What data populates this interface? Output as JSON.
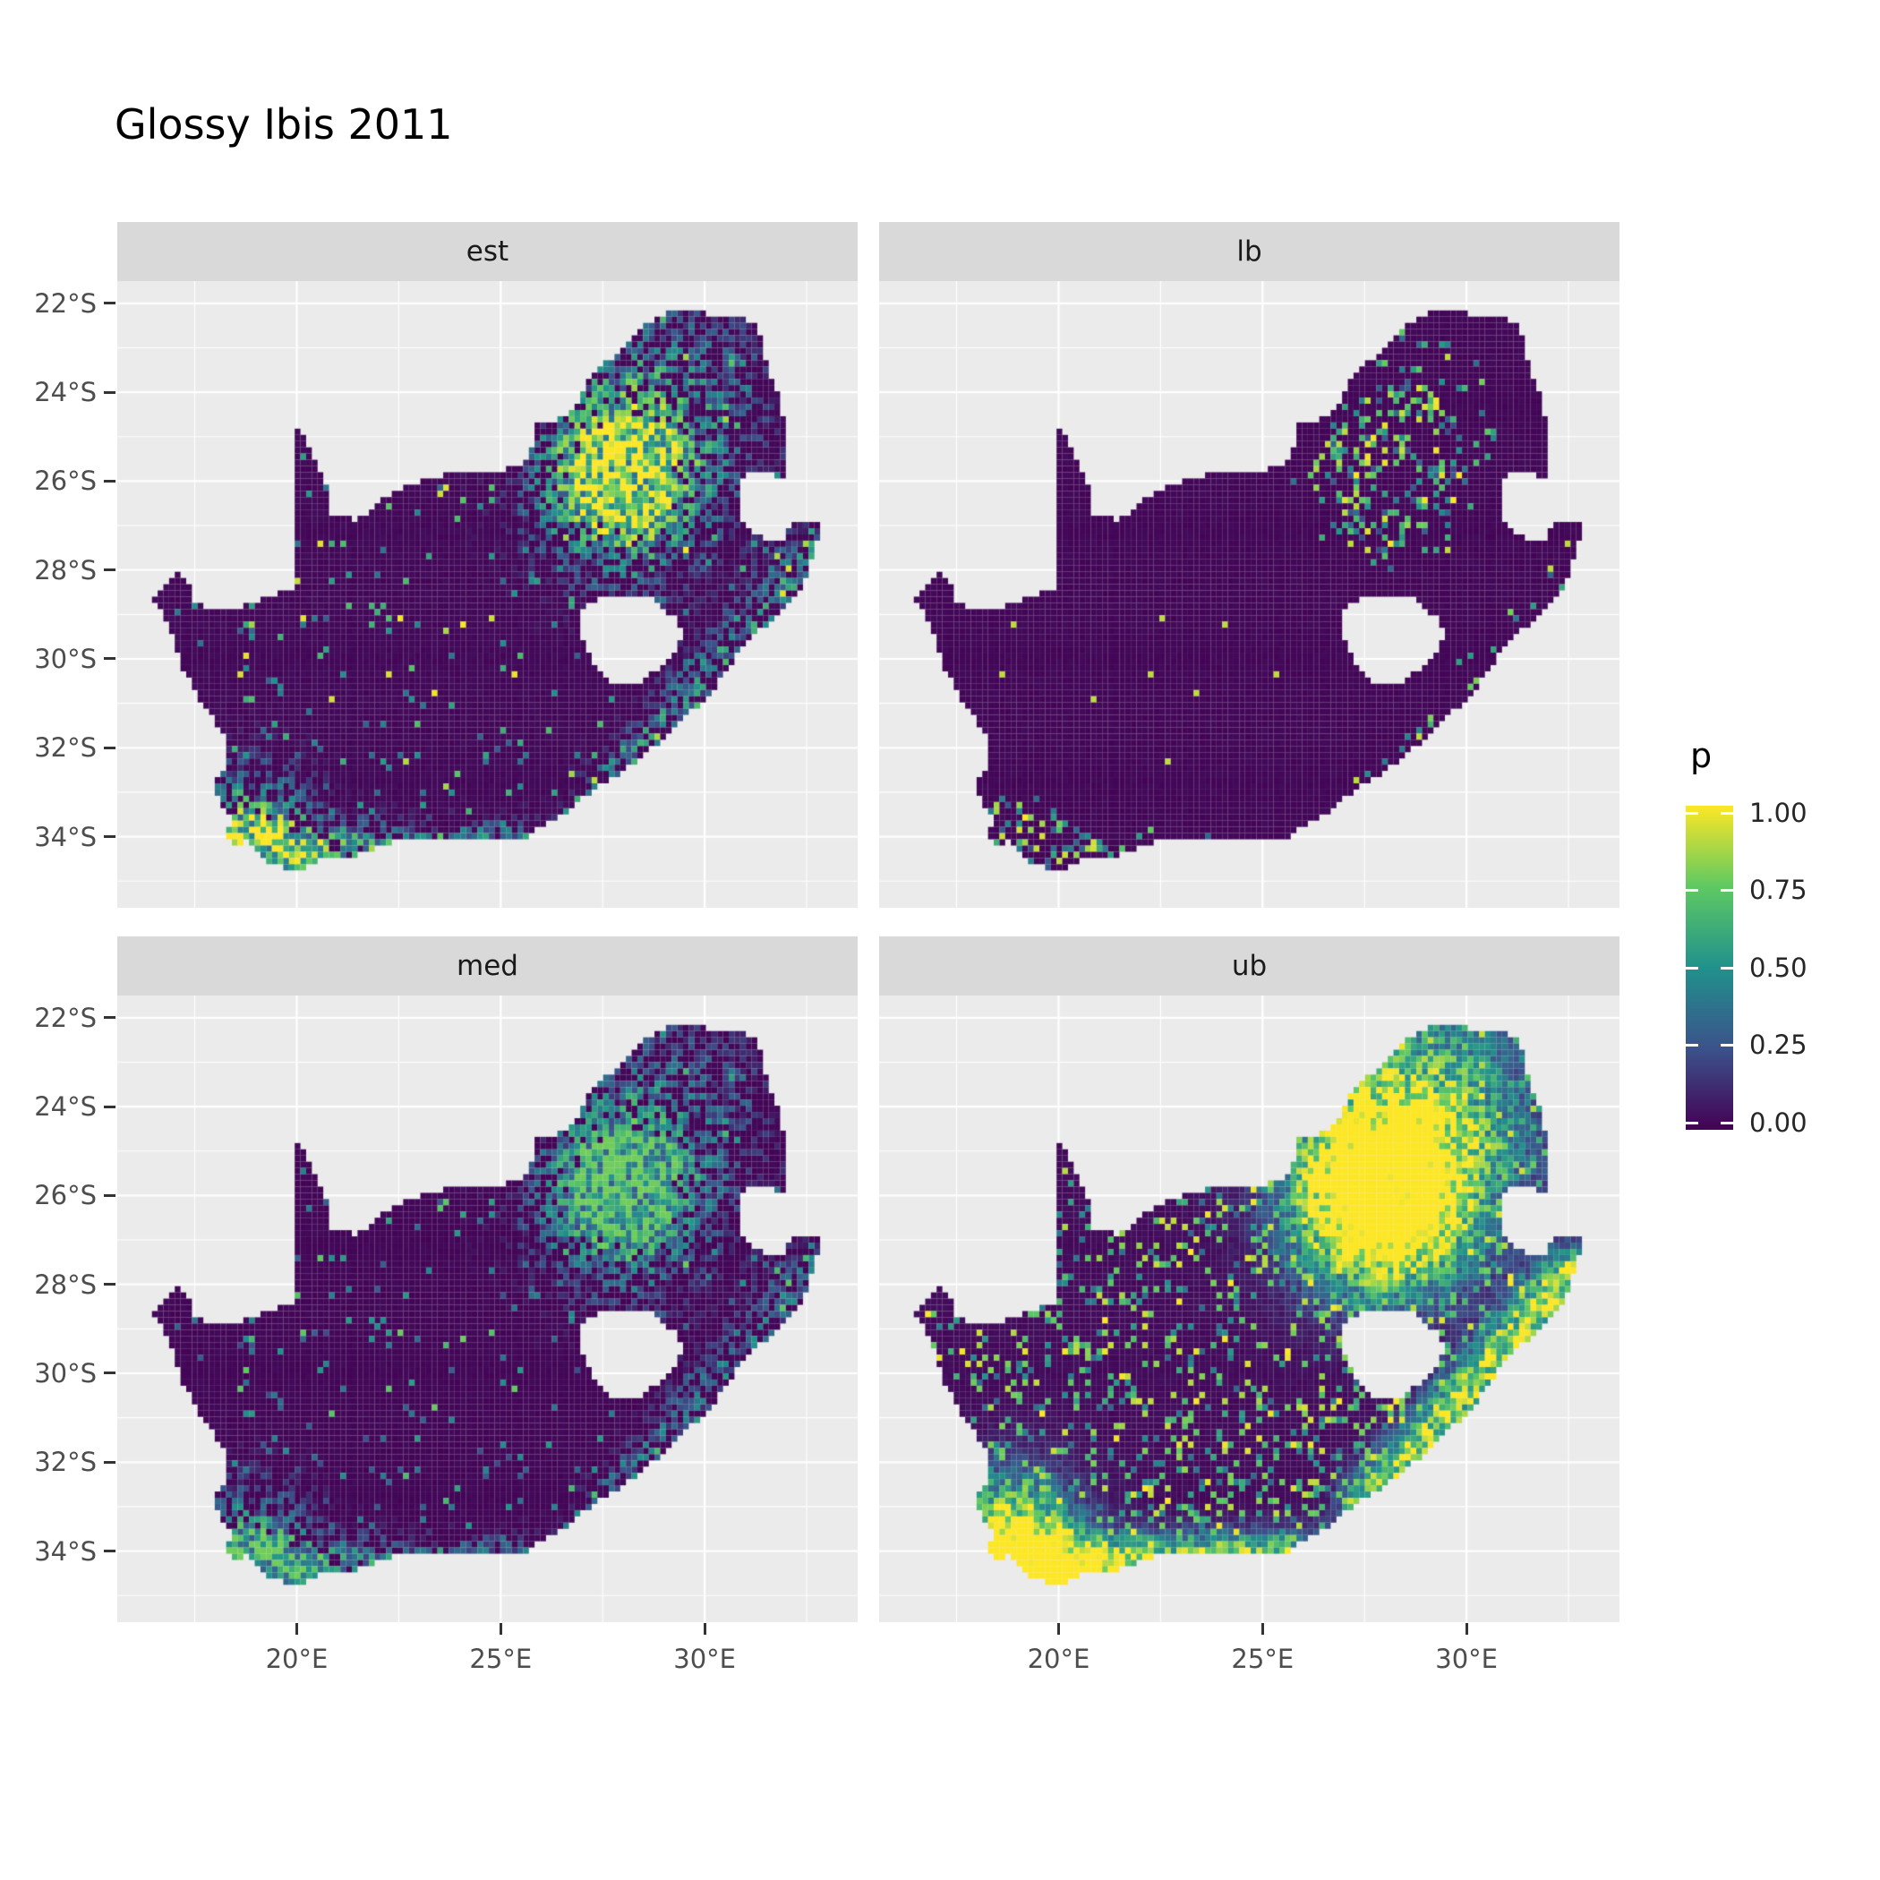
{
  "title": "Glossy Ibis 2011",
  "legend": {
    "title": "p",
    "labels": [
      "1.00",
      "0.75",
      "0.50",
      "0.25",
      "0.00"
    ]
  },
  "chart_data": {
    "type": "heatmap",
    "subtype": "faceted raster probability map (ggplot2 style, viridis colour scale)",
    "title": "Glossy Ibis 2011",
    "region": "South Africa (Lesotho shown as hole; Eswatini notch on eastern border)",
    "facets": [
      "est",
      "lb",
      "med",
      "ub"
    ],
    "facet_grid": {
      "rows": 2,
      "cols": 2,
      "order": [
        "est",
        "lb",
        "med",
        "ub"
      ]
    },
    "x_axis": {
      "ticks": [
        {
          "value": 20,
          "label": "20°E"
        },
        {
          "value": 25,
          "label": "25°E"
        },
        {
          "value": 30,
          "label": "30°E"
        }
      ],
      "range": [
        15.6,
        33.75
      ]
    },
    "y_axis": {
      "ticks": [
        {
          "value": -22,
          "label": "22°S"
        },
        {
          "value": -24,
          "label": "24°S"
        },
        {
          "value": -26,
          "label": "26°S"
        },
        {
          "value": -28,
          "label": "28°S"
        },
        {
          "value": -30,
          "label": "30°S"
        },
        {
          "value": -32,
          "label": "32°S"
        },
        {
          "value": -34,
          "label": "34°S"
        }
      ],
      "range": [
        -35.6,
        -21.5
      ]
    },
    "legend_scale": {
      "title": "p",
      "range": [
        0,
        1
      ],
      "tick_values": [
        1.0,
        0.75,
        0.5,
        0.25,
        0.0
      ]
    },
    "colormap": {
      "name": "viridis",
      "stops": [
        [
          0,
          "#440154"
        ],
        [
          0.25,
          "#3b528b"
        ],
        [
          0.5,
          "#21918c"
        ],
        [
          0.75,
          "#5ec962"
        ],
        [
          1,
          "#fde725"
        ]
      ]
    },
    "colors": {
      "panel_background": "#EBEBEB",
      "strip_background": "#D9D9D9",
      "gridline": "#FFFFFF",
      "axis_text": "#4D4D4D",
      "title_text": "#000000"
    },
    "facet_patterns": {
      "est": "Mostly near-zero (dark purple) interior; strong high-p yellow/green cluster around 25.5–27.5°S, 27–30°E (Highveld/Gauteng); elevated values along the southern and south-eastern coastline; scattered teal speckles elsewhere.",
      "lb": "Near zero almost everywhere; only a sparse cluster of low-to-high cells around 26°S 28°E and a few isolated bright cells.",
      "med": "Same spatial pattern as est but slightly weaker overall intensity.",
      "ub": "Widespread high probabilities: large yellow region across the north-east, yellow bands along the south and east coasts and the south-west Cape, abundant mid/high scattered cells across the interior."
    }
  }
}
